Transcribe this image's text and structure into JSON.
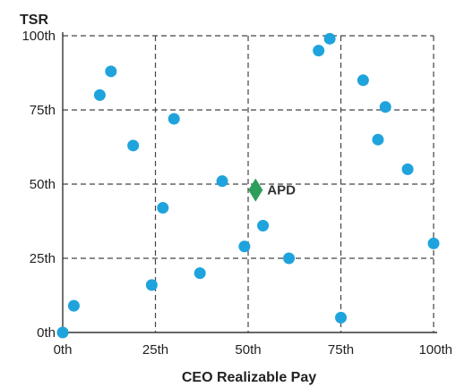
{
  "chart_data": {
    "type": "scatter",
    "xlabel": "CEO Realizable Pay",
    "ylabel": "TSR",
    "xlim": [
      0,
      100
    ],
    "ylim": [
      0,
      100
    ],
    "x_ticks": [
      0,
      25,
      50,
      75,
      100
    ],
    "y_ticks": [
      0,
      25,
      50,
      75,
      100
    ],
    "x_tick_labels": [
      "0th",
      "25th",
      "50th",
      "75th",
      "100th"
    ],
    "y_tick_labels": [
      "0th",
      "25th",
      "50th",
      "75th",
      "100th"
    ],
    "grid": true,
    "grid_style": "dashed",
    "series": [
      {
        "marker": "circle",
        "color": "#1fa3dc",
        "points": [
          {
            "x": 0,
            "y": 0
          },
          {
            "x": 3,
            "y": 9
          },
          {
            "x": 10,
            "y": 80
          },
          {
            "x": 13,
            "y": 88
          },
          {
            "x": 19,
            "y": 63
          },
          {
            "x": 24,
            "y": 16
          },
          {
            "x": 27,
            "y": 42
          },
          {
            "x": 30,
            "y": 72
          },
          {
            "x": 37,
            "y": 20
          },
          {
            "x": 43,
            "y": 51
          },
          {
            "x": 49,
            "y": 29
          },
          {
            "x": 54,
            "y": 36
          },
          {
            "x": 61,
            "y": 25
          },
          {
            "x": 69,
            "y": 95
          },
          {
            "x": 72,
            "y": 99
          },
          {
            "x": 75,
            "y": 5
          },
          {
            "x": 81,
            "y": 85
          },
          {
            "x": 85,
            "y": 65
          },
          {
            "x": 87,
            "y": 76
          },
          {
            "x": 93,
            "y": 55
          },
          {
            "x": 100,
            "y": 30
          }
        ]
      },
      {
        "marker": "diamond",
        "color": "#2e9e5b",
        "points": [
          {
            "x": 52,
            "y": 48,
            "label": "APD"
          }
        ]
      }
    ],
    "legend": "none"
  }
}
